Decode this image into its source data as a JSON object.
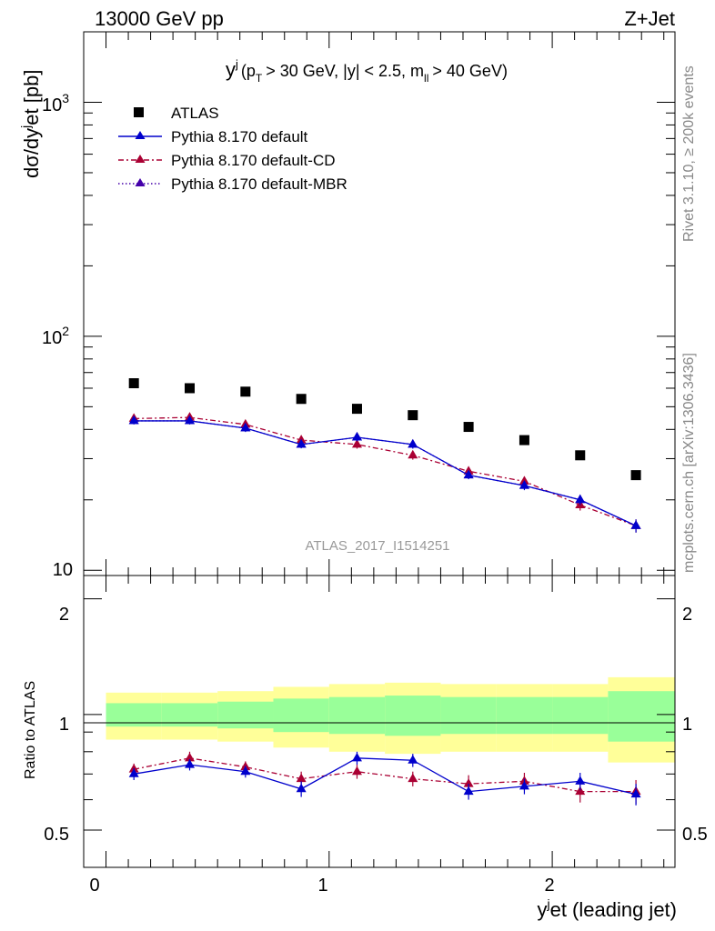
{
  "header": {
    "energy": "13000 GeV pp",
    "process": "Z+Jet"
  },
  "side_labels": {
    "rivet": "Rivet 3.1.10, ≥ 200k events",
    "mcplots": "mcplots.cern.ch [arXiv:1306.3436]"
  },
  "main_plot": {
    "title_y": "y",
    "title_j": "j",
    "title_cuts_a": "(p",
    "title_T": "T",
    "title_cuts_b": "> 30 GeV, |y| < 2.5, m",
    "title_ll": "ll",
    "title_cuts_c": "> 40 GeV)",
    "ylabel_a": "dσ/dy",
    "ylabel_j": "j",
    "ylabel_b": "et [pb]",
    "watermark": "ATLAS_2017_I1514251",
    "ytick_1000_base": "10",
    "ytick_1000_exp": "3",
    "ytick_100_base": "10",
    "ytick_100_exp": "2",
    "ytick_10": "10"
  },
  "ratio_plot": {
    "ylabel": "Ratio to ATLAS",
    "ticks_left": [
      "2",
      "1",
      "0.5"
    ],
    "ticks_right": [
      "2",
      "1",
      "0.5"
    ],
    "xticks": [
      "0",
      "1",
      "2"
    ],
    "xlabel_a": "y",
    "xlabel_j": "j",
    "xlabel_b": "et (leading jet)"
  },
  "legend": [
    {
      "label": "ATLAS"
    },
    {
      "label": "Pythia 8.170 default"
    },
    {
      "label": "Pythia 8.170 default-CD"
    },
    {
      "label": "Pythia 8.170 default-MBR"
    }
  ],
  "colors": {
    "data": "#000000",
    "default": "#0000cc",
    "cd": "#aa0033",
    "mbr": "#4400aa",
    "band_inner": "#99ff99",
    "band_outer": "#ffff99"
  },
  "chart_data": {
    "type": "scatter",
    "x_scale": "linear",
    "y_scale": "log",
    "xlim": [
      -0.1,
      2.55
    ],
    "ylim": [
      9.5,
      2000
    ],
    "x": [
      0.125,
      0.375,
      0.625,
      0.875,
      1.125,
      1.375,
      1.625,
      1.875,
      2.125,
      2.375
    ],
    "series": [
      {
        "name": "ATLAS",
        "values": [
          63,
          60,
          58,
          54,
          49,
          46,
          41,
          36,
          31,
          25.5
        ]
      },
      {
        "name": "Pythia 8.170 default",
        "values": [
          43.5,
          43.5,
          40.5,
          34.5,
          37,
          34.5,
          25.5,
          23,
          20,
          15.5
        ],
        "errors": [
          1.5,
          1.5,
          1.5,
          1.3,
          1.4,
          1.4,
          1.0,
          1.0,
          1.0,
          1.0
        ]
      },
      {
        "name": "Pythia 8.170 default-CD",
        "values": [
          44.5,
          45,
          42,
          36,
          34.5,
          31,
          26.5,
          24,
          19,
          15.5
        ],
        "errors": [
          1.5,
          1.6,
          1.5,
          1.4,
          1.4,
          1.3,
          1.1,
          1.1,
          1.0,
          1.0
        ]
      },
      {
        "name": "Pythia 8.170 default-MBR",
        "values": [
          43.5,
          43.5,
          40.5,
          34.5,
          37,
          34.5,
          25.5,
          23,
          20,
          15.5
        ]
      }
    ],
    "ratio": {
      "ylim": [
        0.4,
        2.3
      ],
      "bin_edges": [
        0,
        0.25,
        0.5,
        0.75,
        1.0,
        1.25,
        1.5,
        1.75,
        2.0,
        2.25,
        2.5
      ],
      "band_inner": [
        0.07,
        0.07,
        0.08,
        0.1,
        0.11,
        0.12,
        0.11,
        0.11,
        0.11,
        0.15
      ],
      "band_outer": [
        0.14,
        0.14,
        0.15,
        0.18,
        0.2,
        0.21,
        0.2,
        0.2,
        0.2,
        0.25
      ],
      "series": [
        {
          "name": "Pythia 8.170 default",
          "values": [
            0.7,
            0.74,
            0.71,
            0.64,
            0.77,
            0.76,
            0.63,
            0.65,
            0.67,
            0.62
          ],
          "errors": [
            0.025,
            0.025,
            0.025,
            0.03,
            0.03,
            0.03,
            0.03,
            0.03,
            0.035,
            0.04
          ]
        },
        {
          "name": "Pythia 8.170 default-CD",
          "values": [
            0.72,
            0.77,
            0.73,
            0.68,
            0.71,
            0.68,
            0.66,
            0.67,
            0.63,
            0.63
          ],
          "errors": [
            0.025,
            0.03,
            0.025,
            0.03,
            0.03,
            0.03,
            0.035,
            0.035,
            0.04,
            0.045
          ]
        }
      ]
    }
  }
}
